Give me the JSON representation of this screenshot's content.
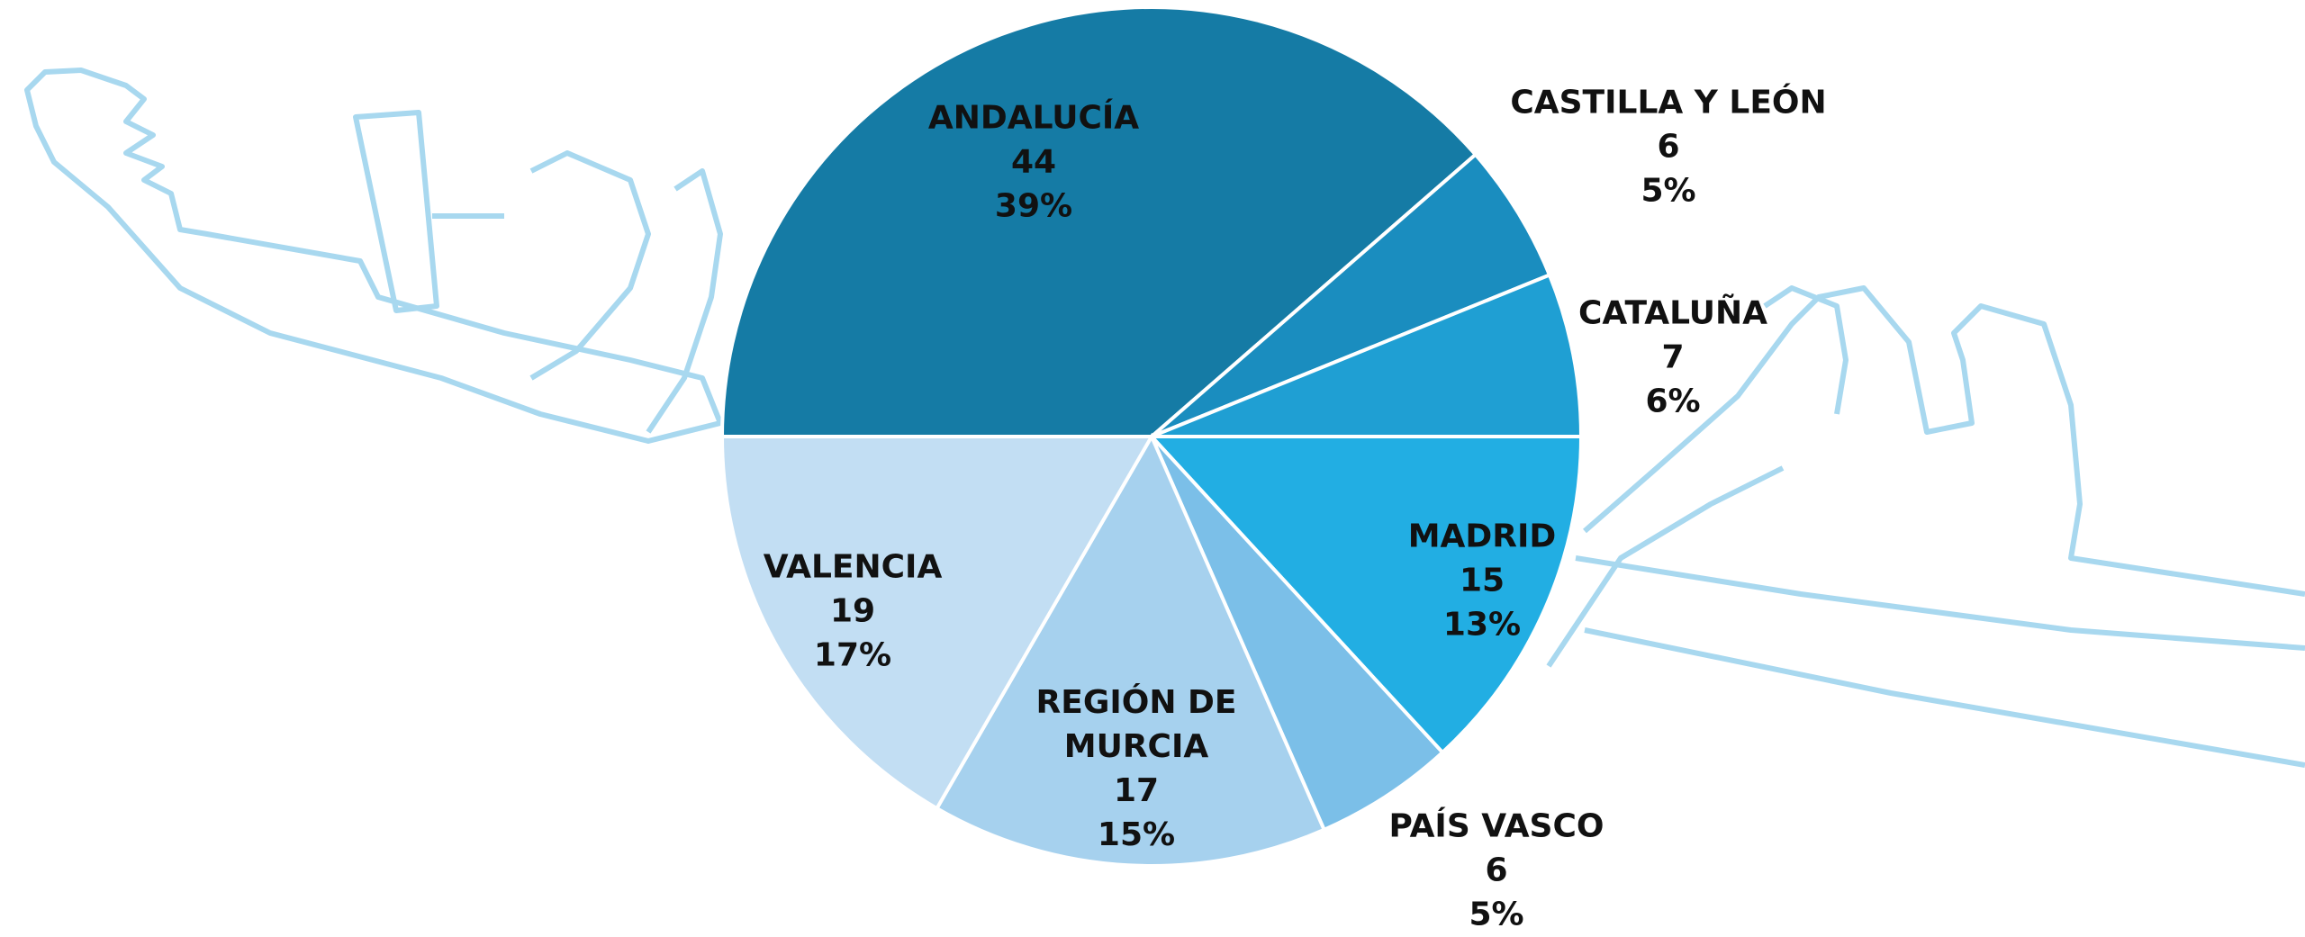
{
  "chart_data": {
    "type": "pie",
    "categories": [
      "ANDALUCÍA",
      "CASTILLA Y LEÓN",
      "CATALUÑA",
      "MADRID",
      "PAÍS VASCO",
      "REGIÓN DE MURCIA",
      "VALENCIA"
    ],
    "values": [
      44,
      6,
      7,
      15,
      6,
      17,
      19
    ],
    "percent_labels": [
      {
        "value": 39,
        "label": "39%"
      },
      {
        "value": 5,
        "label": "5%"
      },
      {
        "value": 6,
        "label": "6%"
      },
      {
        "value": 13,
        "label": "13%"
      },
      {
        "value": 5,
        "label": "5%"
      },
      {
        "value": 15,
        "label": "15%"
      },
      {
        "value": 17,
        "label": "17%"
      }
    ],
    "colors": [
      "#157ba5",
      "#1a8dbf",
      "#1f9fd3",
      "#22aee3",
      "#7bbfe8",
      "#a6d1ee",
      "#c2def3"
    ]
  }
}
